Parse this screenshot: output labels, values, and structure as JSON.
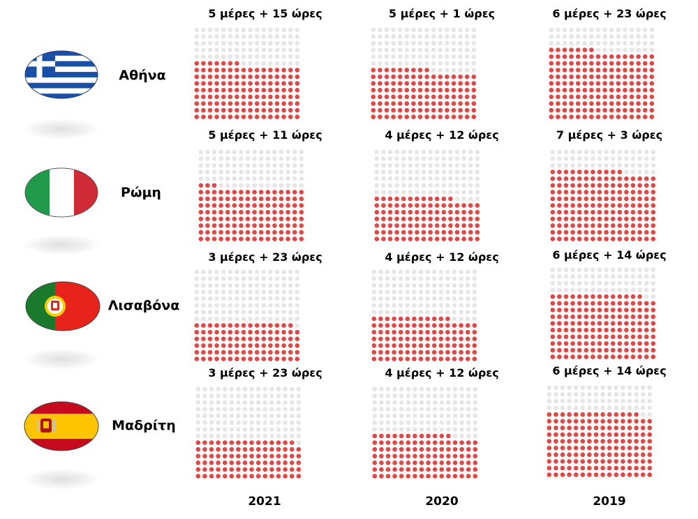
{
  "chart_data": {
    "type": "waffle",
    "years": [
      "2021",
      "2020",
      "2019"
    ],
    "cities": [
      {
        "name": "Αθήνα",
        "flag": "greece-flag",
        "cells": [
          {
            "year": "2021",
            "label": "5 μέρες + 15 ώρες",
            "days": 5,
            "hours": 15
          },
          {
            "year": "2020",
            "label": "5 μέρες + 1 ώρες",
            "days": 5,
            "hours": 1
          },
          {
            "year": "2019",
            "label": "6 μέρες + 23 ώρες",
            "days": 6,
            "hours": 23
          }
        ]
      },
      {
        "name": "Ρώμη",
        "flag": "italy-flag",
        "cells": [
          {
            "year": "2021",
            "label": "5 μέρες + 11 ώρες",
            "days": 5,
            "hours": 11
          },
          {
            "year": "2020",
            "label": "4 μέρες + 12 ώρες",
            "days": 4,
            "hours": 12
          },
          {
            "year": "2019",
            "label": "7 μέρες + 3 ώρες",
            "days": 7,
            "hours": 3
          }
        ]
      },
      {
        "name": "Λισαβόνα",
        "flag": "portugal-flag",
        "cells": [
          {
            "year": "2021",
            "label": "3 μέρες + 23 ώρες",
            "days": 3,
            "hours": 23
          },
          {
            "year": "2020",
            "label": "4 μέρες + 12 ώρες",
            "days": 4,
            "hours": 12
          },
          {
            "year": "2019",
            "label": "6 μέρες + 14 ώρες",
            "days": 6,
            "hours": 14
          }
        ]
      },
      {
        "name": "Μαδρίτη",
        "flag": "spain-flag",
        "cells": [
          {
            "year": "2021",
            "label": "3 μέρες + 23 ώρες",
            "days": 3,
            "hours": 23
          },
          {
            "year": "2020",
            "label": "4 μέρες + 12 ώρες",
            "days": 4,
            "hours": 12
          },
          {
            "year": "2019",
            "label": "6 μέρες + 14 ώρες",
            "days": 6,
            "hours": 14
          }
        ]
      }
    ],
    "colors": {
      "filled": "#e04848",
      "empty": "#e6e6e6"
    }
  }
}
